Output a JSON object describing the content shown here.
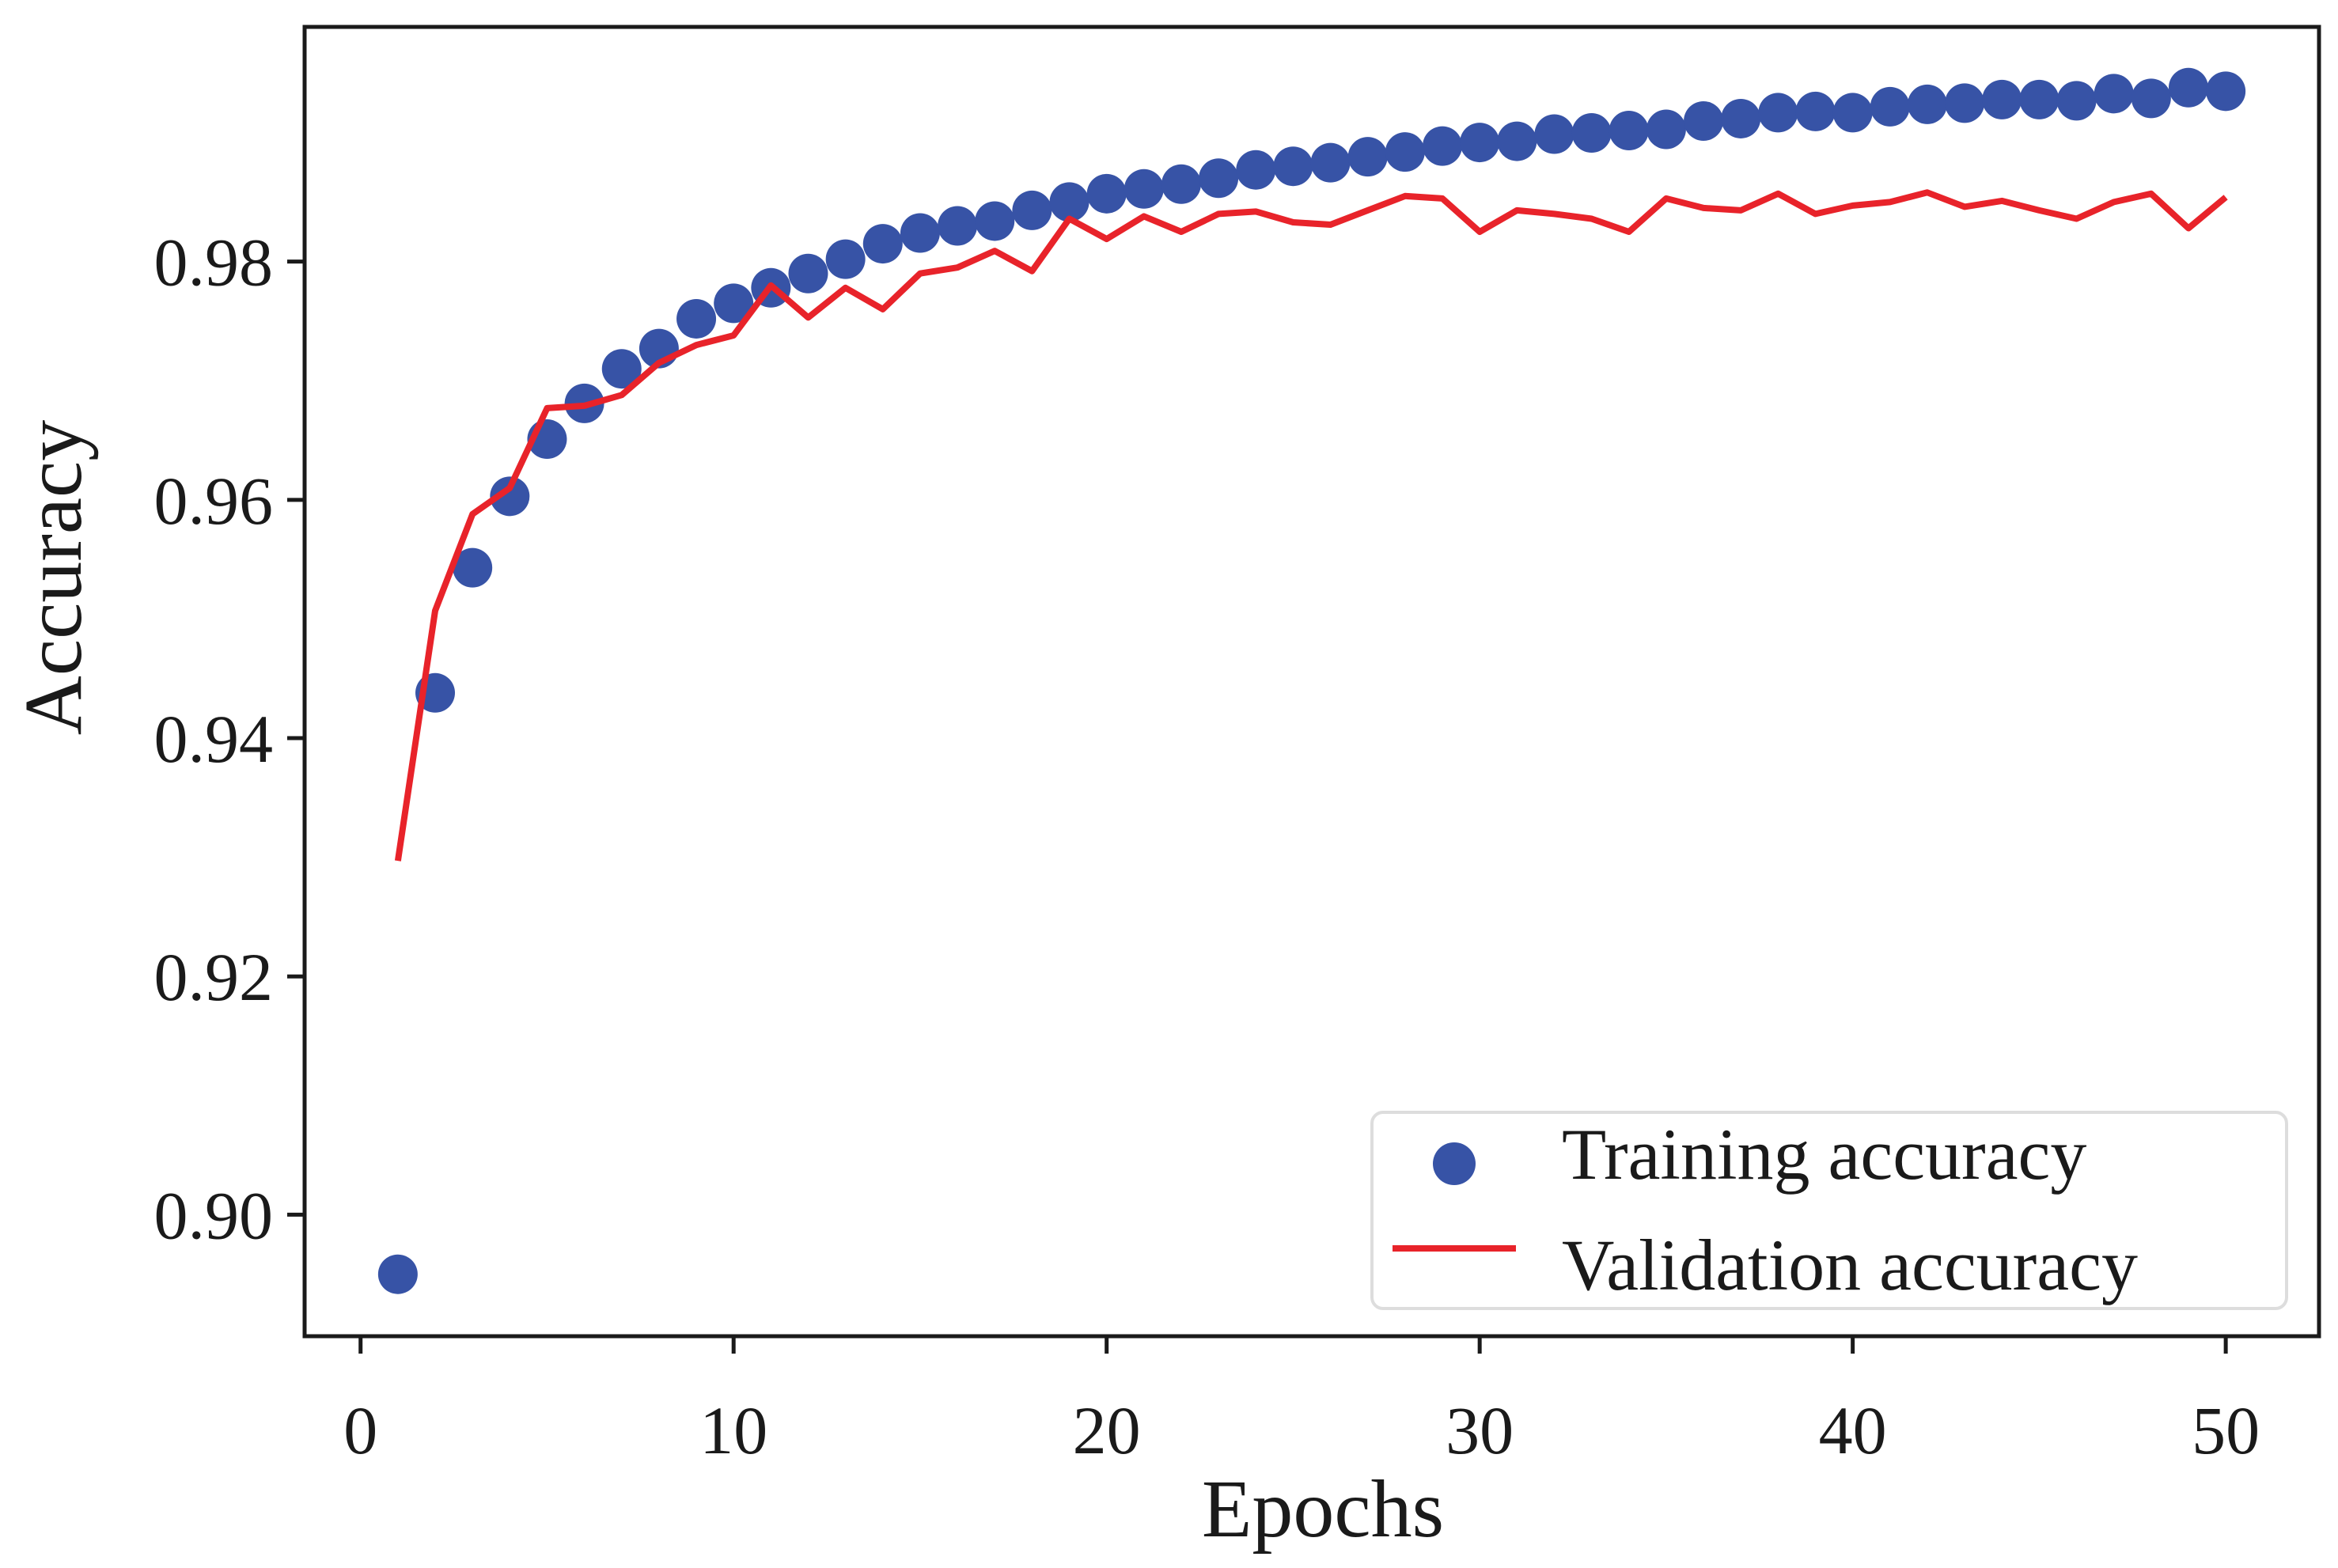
{
  "colors": {
    "training": "#3753a6",
    "validation": "#e8232a",
    "axes": "#1a1a1a",
    "background": "#ffffff",
    "legend_border": "#dddddd"
  },
  "chart_data": {
    "type": "scatter",
    "title": "",
    "xlabel": "Epochs",
    "ylabel": "Accuracy",
    "xlim": [
      -1.5,
      52.5
    ],
    "ylim": [
      0.8898,
      0.9997
    ],
    "xticks": [
      0,
      10,
      20,
      30,
      40,
      50
    ],
    "xtick_labels": [
      "0",
      "10",
      "20",
      "30",
      "40",
      "50"
    ],
    "yticks": [
      0.9,
      0.92,
      0.94,
      0.96,
      0.98
    ],
    "ytick_labels": [
      "0.90",
      "0.92",
      "0.94",
      "0.96",
      "0.98"
    ],
    "grid": false,
    "legend_position": "lower right",
    "x": [
      1,
      2,
      3,
      4,
      5,
      6,
      7,
      8,
      9,
      10,
      11,
      12,
      13,
      14,
      15,
      16,
      17,
      18,
      19,
      20,
      21,
      22,
      23,
      24,
      25,
      26,
      27,
      28,
      29,
      30,
      31,
      32,
      33,
      34,
      35,
      36,
      37,
      38,
      39,
      40,
      41,
      42,
      43,
      44,
      45,
      46,
      47,
      48,
      49,
      50
    ],
    "series": [
      {
        "name": "Training accuracy",
        "kind": "scatter",
        "values": [
          0.895,
          0.9438,
          0.9543,
          0.9603,
          0.9651,
          0.9681,
          0.971,
          0.9727,
          0.9752,
          0.9765,
          0.9778,
          0.979,
          0.9802,
          0.9815,
          0.9824,
          0.983,
          0.9834,
          0.9843,
          0.985,
          0.9857,
          0.9861,
          0.9865,
          0.987,
          0.9877,
          0.988,
          0.9883,
          0.9888,
          0.9892,
          0.9897,
          0.99,
          0.9901,
          0.9907,
          0.9908,
          0.991,
          0.9911,
          0.9918,
          0.992,
          0.9925,
          0.9926,
          0.9925,
          0.993,
          0.9932,
          0.9933,
          0.9936,
          0.9936,
          0.9935,
          0.9941,
          0.9937,
          0.9946,
          0.9943
        ]
      },
      {
        "name": "Validation accuracy",
        "kind": "line",
        "values": [
          0.9297,
          0.9507,
          0.9588,
          0.961,
          0.9677,
          0.9679,
          0.9688,
          0.9715,
          0.973,
          0.9738,
          0.978,
          0.9753,
          0.9778,
          0.976,
          0.979,
          0.9795,
          0.9809,
          0.9792,
          0.9836,
          0.9819,
          0.9838,
          0.9825,
          0.984,
          0.9842,
          0.9833,
          0.9831,
          0.9843,
          0.9855,
          0.9853,
          0.9825,
          0.9843,
          0.984,
          0.9836,
          0.9825,
          0.9853,
          0.9845,
          0.9843,
          0.9857,
          0.984,
          0.9847,
          0.985,
          0.9858,
          0.9846,
          0.9851,
          0.9843,
          0.9836,
          0.985,
          0.9857,
          0.9828,
          0.9854
        ]
      }
    ]
  }
}
